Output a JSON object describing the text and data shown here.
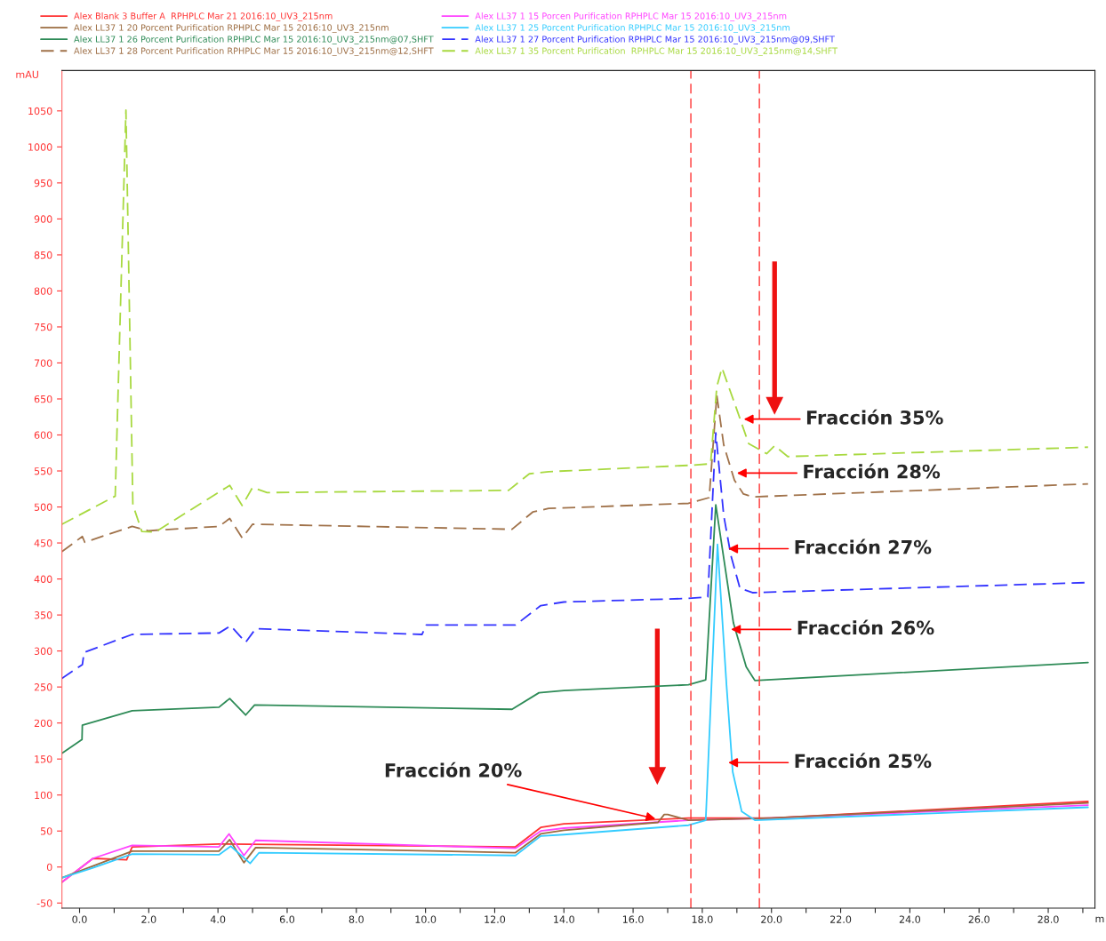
{
  "chart_data": {
    "type": "line",
    "xlabel": "m",
    "ylabel": "mAU",
    "legend": "top",
    "grid": false,
    "marker": "none",
    "xlim": [
      -0.51,
      29.35
    ],
    "ylim": [
      -57,
      1106
    ],
    "xticks": [
      {
        "value": 0,
        "label": "0.0"
      },
      {
        "value": 1,
        "label": null
      },
      {
        "value": 2,
        "label": "2.0"
      },
      {
        "value": 3,
        "label": null
      },
      {
        "value": 4,
        "label": "4.0"
      },
      {
        "value": 5,
        "label": null
      },
      {
        "value": 6,
        "label": "6.0"
      },
      {
        "value": 7,
        "label": null
      },
      {
        "value": 8,
        "label": "8.0"
      },
      {
        "value": 9,
        "label": null
      },
      {
        "value": 10,
        "label": "10.0"
      },
      {
        "value": 11,
        "label": null
      },
      {
        "value": 12,
        "label": "12.0"
      },
      {
        "value": 13,
        "label": null
      },
      {
        "value": 14,
        "label": "14.0"
      },
      {
        "value": 15,
        "label": null
      },
      {
        "value": 16,
        "label": "16.0"
      },
      {
        "value": 17,
        "label": null
      },
      {
        "value": 18,
        "label": "18.0"
      },
      {
        "value": 19,
        "label": null
      },
      {
        "value": 20,
        "label": "20.0"
      },
      {
        "value": 21,
        "label": null
      },
      {
        "value": 22,
        "label": "22.0"
      },
      {
        "value": 23,
        "label": null
      },
      {
        "value": 24,
        "label": "24.0"
      },
      {
        "value": 25,
        "label": null
      },
      {
        "value": 26,
        "label": "26.0"
      },
      {
        "value": 27,
        "label": null
      },
      {
        "value": 28,
        "label": "28.0"
      },
      {
        "value": 29,
        "label": null
      }
    ],
    "yticks": [
      -50,
      0,
      50,
      100,
      150,
      200,
      250,
      300,
      350,
      400,
      450,
      500,
      550,
      600,
      650,
      700,
      750,
      800,
      850,
      900,
      950,
      1000,
      1050
    ],
    "series": [
      {
        "name": "Alex Blank 3 Buffer A  RPHPLC Mar 21 2016:10_UV3_215nm",
        "color": "#ff3333",
        "line_style": "solid",
        "x": [
          -0.51,
          0.39,
          1.36,
          1.52,
          4.03,
          12.6,
          13.33,
          14.0,
          17.6,
          20.0,
          29.15
        ],
        "values": [
          -21,
          12,
          10,
          28,
          32,
          28,
          55,
          60,
          68,
          68,
          91
        ]
      },
      {
        "name": "Alex LL37 1 15 Porcen Purification RPHPLC Mar 15 2016:10_UV3_215nm",
        "color": "#ff44ff",
        "line_style": "solid",
        "x": [
          -0.51,
          0.39,
          1.52,
          4.03,
          4.32,
          4.75,
          5.09,
          12.6,
          13.33,
          14.0,
          17.6,
          20.0,
          29.15
        ],
        "values": [
          -21,
          12,
          30,
          28,
          46,
          16,
          37,
          26,
          50,
          54,
          65,
          68,
          86
        ]
      },
      {
        "name": "Alex LL37 1 20 Porcent Purification RPHPLC Mar 15 2016:10_UV3_215nm",
        "color": "#9b6b3f",
        "line_style": "solid",
        "x": [
          -0.51,
          1.52,
          4.03,
          4.34,
          4.75,
          5.09,
          12.6,
          13.33,
          14.0,
          16.72,
          16.9,
          17.0,
          17.6,
          20.0,
          29.15
        ],
        "values": [
          -15,
          22,
          22,
          38,
          6,
          27,
          20,
          46,
          51,
          62,
          73,
          73,
          65,
          68,
          89
        ]
      },
      {
        "name": "Alex LL37 1 25 Porcent Purification RPHPLC Mar 15 2016:10_UV3_215nm",
        "color": "#33ccff",
        "line_style": "solid",
        "x": [
          -0.51,
          0.39,
          1.52,
          4.03,
          4.37,
          4.93,
          5.19,
          12.6,
          13.33,
          14.0,
          17.6,
          18.1,
          18.44,
          18.7,
          18.88,
          19.14,
          19.52,
          29.15
        ],
        "values": [
          -15,
          -1,
          18,
          17,
          29,
          5,
          20,
          16,
          43,
          45,
          58,
          65,
          448,
          253,
          132,
          77,
          65,
          83
        ]
      },
      {
        "name": "Alex LL37 1 26 Porcent Purification RPHPLC Mar 15 2016:10_UV3_215nm@07,SHFT",
        "color": "#2e8b57",
        "line_style": "solid",
        "x": [
          -0.51,
          0.07,
          0.08,
          1.52,
          4.03,
          4.34,
          4.8,
          5.06,
          12.5,
          13.28,
          14.0,
          17.6,
          18.1,
          18.39,
          18.9,
          19.27,
          19.52,
          29.15
        ],
        "values": [
          158,
          177,
          197,
          217,
          222,
          234,
          211,
          225,
          219,
          242,
          245,
          253,
          260,
          503,
          339,
          278,
          259,
          284
        ]
      },
      {
        "name": "Alex LL37 1 27 Porcent Purification RPHPLC Mar 15 2016:10_UV3_215nm@09,SHFT",
        "color": "#3333ff",
        "line_style": "dashed",
        "x": [
          -0.51,
          0.08,
          0.13,
          1.52,
          4.03,
          4.37,
          4.8,
          5.09,
          9.9,
          10.02,
          12.6,
          13.33,
          14.0,
          17.6,
          18.16,
          18.39,
          18.62,
          18.83,
          19.09,
          19.45,
          29.15
        ],
        "values": [
          262,
          281,
          298,
          323,
          325,
          335,
          312,
          331,
          323,
          336,
          336,
          363,
          368,
          373,
          375,
          603,
          488,
          432,
          387,
          381,
          395
        ]
      },
      {
        "name": "Alex LL37 1 28 Porcent Purification RPHPLC Mar 15 2016:10_UV3_215nm@12,SHFT",
        "color": "#a0724a",
        "line_style": "dashed",
        "x": [
          -0.51,
          0.08,
          0.15,
          1.52,
          1.98,
          4.03,
          4.34,
          4.7,
          5.0,
          12.5,
          13.1,
          13.56,
          17.6,
          18.2,
          18.42,
          18.62,
          18.93,
          19.19,
          19.45,
          29.15
        ],
        "values": [
          438,
          459,
          451,
          473,
          467,
          473,
          484,
          457,
          476,
          469,
          493,
          498,
          505,
          513,
          655,
          586,
          537,
          518,
          514,
          532
        ]
      },
      {
        "name": "Alex LL37 1 35 Porcent Purification  RPHPLC Mar 15 2016:10_UV3_215nm@14,SHFT",
        "color": "#a8d940",
        "line_style": "dashed",
        "x": [
          -0.51,
          1.03,
          1.34,
          1.54,
          1.8,
          2.18,
          4.24,
          4.34,
          4.7,
          5.0,
          5.42,
          12.4,
          13.0,
          13.56,
          17.7,
          18.24,
          18.42,
          18.57,
          19.0,
          19.34,
          19.86,
          20.09,
          20.47,
          29.15
        ],
        "values": [
          476,
          515,
          1051,
          503,
          466,
          465,
          527,
          530,
          502,
          527,
          520,
          523,
          546,
          549,
          558,
          560,
          667,
          693,
          635,
          588,
          574,
          585,
          570,
          583
        ]
      }
    ],
    "ref_lines": [
      {
        "axis": "x",
        "value": 17.67,
        "color": "#ff3333",
        "line_style": "dashed"
      },
      {
        "axis": "x",
        "value": 19.65,
        "color": "#ff3333",
        "line_style": "dashed"
      }
    ],
    "annotations": [
      {
        "text": "Fracción 35%",
        "x": 19.2,
        "y": 622
      },
      {
        "text": "Fracción 28%",
        "x": 19.0,
        "y": 547
      },
      {
        "text": "Fracción 27%",
        "x": 18.75,
        "y": 442
      },
      {
        "text": "Fracción 26%",
        "x": 18.83,
        "y": 330
      },
      {
        "text": "Fracción 25%",
        "x": 18.75,
        "y": 145
      },
      {
        "text": "Fracción 20%",
        "x": 16.65,
        "y": 67
      }
    ]
  }
}
